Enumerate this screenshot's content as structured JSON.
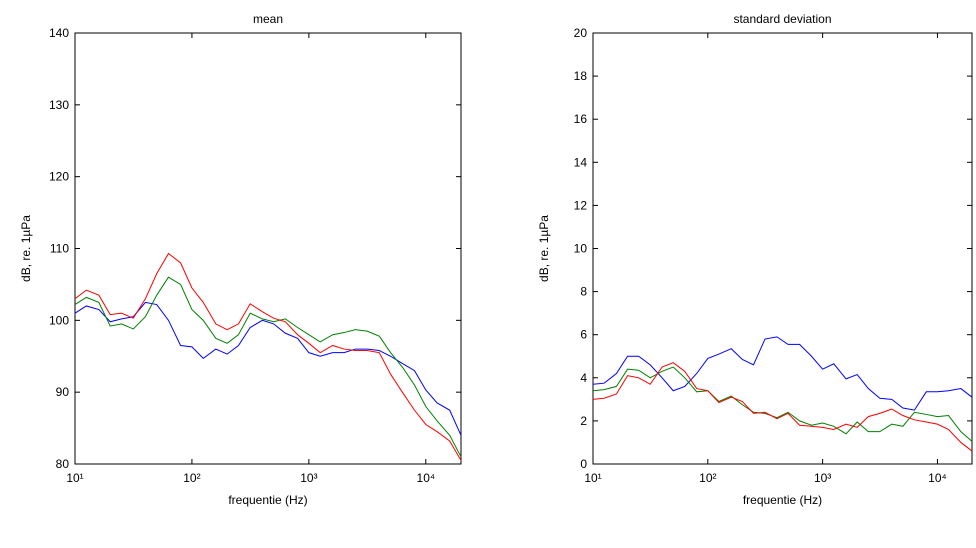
{
  "chart_data": [
    {
      "type": "line",
      "title": "mean",
      "xlabel": "frequentie (Hz)",
      "ylabel": "dB, re. 1µPa",
      "xscale": "log",
      "x": [
        10,
        12.5,
        16,
        20,
        25,
        31.5,
        40,
        50,
        63,
        80,
        100,
        125,
        160,
        200,
        250,
        315,
        400,
        500,
        630,
        800,
        1000,
        1250,
        1600,
        2000,
        2500,
        3150,
        4000,
        5000,
        6300,
        8000,
        10000,
        12500,
        16000,
        20000
      ],
      "xlim": [
        10,
        20000
      ],
      "xticks": [
        {
          "value": 10,
          "label": "10¹"
        },
        {
          "value": 100,
          "label": "10²"
        },
        {
          "value": 1000,
          "label": "10³"
        },
        {
          "value": 10000,
          "label": "10⁴"
        }
      ],
      "ylim": [
        80,
        140
      ],
      "yticks": [
        80,
        90,
        100,
        110,
        120,
        130,
        140
      ],
      "series": [
        {
          "color": "#0000ff",
          "values": [
            101,
            102,
            101.5,
            99.8,
            100.2,
            100.5,
            102.5,
            102.2,
            100,
            96.5,
            96.3,
            94.7,
            96,
            95.3,
            96.5,
            99,
            100,
            99.5,
            98.2,
            97.5,
            95.5,
            95,
            95.5,
            95.5,
            96,
            96,
            95.8,
            95,
            94,
            93,
            90.3,
            88.5,
            87.5,
            84
          ]
        },
        {
          "color": "#008000",
          "values": [
            102.2,
            103.2,
            102.5,
            99.2,
            99.5,
            98.8,
            100.5,
            103.5,
            106,
            105,
            101.5,
            100,
            97.5,
            96.8,
            98,
            101,
            100.2,
            99.8,
            100.2,
            99,
            98,
            97,
            98,
            98.3,
            98.7,
            98.5,
            97.8,
            95.5,
            93.5,
            91,
            88,
            86,
            84,
            81
          ]
        },
        {
          "color": "#ff0000",
          "values": [
            103,
            104.2,
            103.5,
            100.8,
            101,
            100.3,
            103,
            106.5,
            109.3,
            108,
            104.5,
            102.5,
            99.5,
            98.7,
            99.5,
            102.3,
            101.2,
            100.3,
            99.8,
            98,
            96.8,
            95.5,
            96.5,
            96,
            95.8,
            95.8,
            95.5,
            92.5,
            90,
            87.5,
            85.5,
            84.5,
            83.2,
            80.5
          ]
        }
      ]
    },
    {
      "type": "line",
      "title": "standard deviation",
      "xlabel": "frequentie (Hz)",
      "ylabel": "dB, re. 1µPa",
      "xscale": "log",
      "x": [
        10,
        12.5,
        16,
        20,
        25,
        31.5,
        40,
        50,
        63,
        80,
        100,
        125,
        160,
        200,
        250,
        315,
        400,
        500,
        630,
        800,
        1000,
        1250,
        1600,
        2000,
        2500,
        3150,
        4000,
        5000,
        6300,
        8000,
        10000,
        12500,
        16000,
        20000
      ],
      "xlim": [
        10,
        20000
      ],
      "xticks": [
        {
          "value": 10,
          "label": "10¹"
        },
        {
          "value": 100,
          "label": "10²"
        },
        {
          "value": 1000,
          "label": "10³"
        },
        {
          "value": 10000,
          "label": "10⁴"
        }
      ],
      "ylim": [
        0,
        20
      ],
      "yticks": [
        0,
        2,
        4,
        6,
        8,
        10,
        12,
        14,
        16,
        18,
        20
      ],
      "series": [
        {
          "color": "#0000ff",
          "values": [
            3.7,
            3.75,
            4.2,
            5.0,
            5.0,
            4.6,
            4.0,
            3.4,
            3.6,
            4.2,
            4.9,
            5.1,
            5.35,
            4.85,
            4.6,
            5.8,
            5.9,
            5.55,
            5.55,
            5.0,
            4.4,
            4.65,
            3.95,
            4.15,
            3.5,
            3.05,
            3.0,
            2.6,
            2.5,
            3.35,
            3.35,
            3.4,
            3.5,
            3.1
          ]
        },
        {
          "color": "#008000",
          "values": [
            3.4,
            3.45,
            3.6,
            4.4,
            4.35,
            4.0,
            4.3,
            4.5,
            4.0,
            3.35,
            3.4,
            2.9,
            3.15,
            2.75,
            2.4,
            2.35,
            2.15,
            2.4,
            2.0,
            1.8,
            1.9,
            1.75,
            1.4,
            1.95,
            1.5,
            1.5,
            1.85,
            1.75,
            2.4,
            2.3,
            2.2,
            2.25,
            1.5,
            1.05
          ]
        },
        {
          "color": "#ff0000",
          "values": [
            3.0,
            3.05,
            3.25,
            4.1,
            4.0,
            3.7,
            4.5,
            4.7,
            4.3,
            3.5,
            3.4,
            2.85,
            3.1,
            2.9,
            2.35,
            2.4,
            2.1,
            2.35,
            1.8,
            1.75,
            1.7,
            1.6,
            1.85,
            1.7,
            2.2,
            2.35,
            2.55,
            2.25,
            2.05,
            1.95,
            1.85,
            1.6,
            1.0,
            0.6
          ]
        }
      ]
    }
  ]
}
